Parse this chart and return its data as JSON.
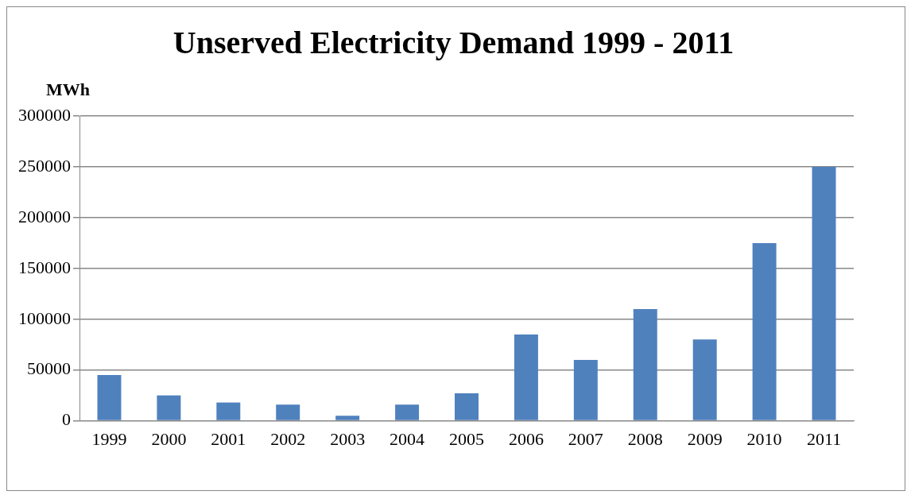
{
  "chart_data": {
    "type": "bar",
    "title": "Unserved Electricity Demand 1999 - 2011",
    "ylabel": "MWh",
    "categories": [
      "1999",
      "2000",
      "2001",
      "2002",
      "2003",
      "2004",
      "2005",
      "2006",
      "2007",
      "2008",
      "2009",
      "2010",
      "2011"
    ],
    "values": [
      45000,
      25000,
      18000,
      16000,
      5000,
      16000,
      27000,
      85000,
      60000,
      110000,
      80000,
      175000,
      250000
    ],
    "color": "#4f81bd",
    "ylim": [
      0,
      300000
    ],
    "yticks": [
      0,
      50000,
      100000,
      150000,
      200000,
      250000,
      300000
    ],
    "grid": "y",
    "legend": false
  }
}
